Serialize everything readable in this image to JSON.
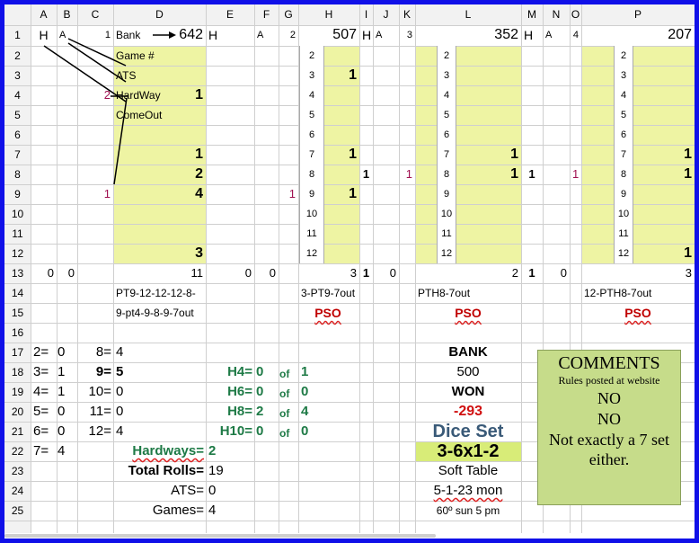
{
  "columns": [
    "A",
    "B",
    "C",
    "D",
    "E",
    "F",
    "G",
    "H",
    "I",
    "J",
    "K",
    "L",
    "M",
    "N",
    "O",
    "P"
  ],
  "rows": [
    "1",
    "2",
    "3",
    "4",
    "5",
    "6",
    "7",
    "8",
    "9",
    "10",
    "11",
    "12",
    "13",
    "14",
    "15",
    "16",
    "17",
    "18",
    "19",
    "20",
    "21",
    "22",
    "23",
    "24",
    "25"
  ],
  "labels": {
    "bank": "Bank",
    "game": "Game #",
    "ats": "ATS",
    "hardway": "HardWay",
    "comeout": "ComeOut"
  },
  "row1": {
    "a": "H",
    "b": "A",
    "c": "1",
    "d": "642",
    "e": "H",
    "f": "A",
    "g": "2",
    "h": "507",
    "i": "H",
    "j": "A",
    "k": "3",
    "l": "352",
    "m": "H",
    "n": "A",
    "o": "4",
    "p": "207"
  },
  "dice_numbers": [
    "2",
    "3",
    "4",
    "5",
    "6",
    "7",
    "8",
    "9",
    "10",
    "11",
    "12"
  ],
  "d_values": {
    "r4": "1",
    "r7": "1",
    "r8": "2",
    "r9": "4",
    "r12": "3"
  },
  "h_values": {
    "r3": "1",
    "r7": "1",
    "r9": "1"
  },
  "l_values": {
    "r7": "1",
    "r8": "1"
  },
  "p_values": {
    "r7": "1",
    "r8": "1",
    "r12": "1"
  },
  "row8": {
    "i": "1",
    "k": "1",
    "m": "1",
    "o": "1"
  },
  "row4c": "2",
  "row9": {
    "c": "1",
    "g": "1"
  },
  "row13": {
    "a": "0",
    "b": "0",
    "d": "11",
    "e": "0",
    "f": "0",
    "h": "3",
    "i": "1",
    "j": "0",
    "l": "2",
    "m": "1",
    "n": "0",
    "p": "3"
  },
  "row14": {
    "d": "PT9-12-12-12-8-",
    "h": "3-PT9-7out",
    "l": "PTH8-7out",
    "p": "12-PTH8-7out"
  },
  "row15": {
    "d": "9-pt4-9-8-9-7out",
    "h": "PSO",
    "l": "PSO",
    "p": "PSO"
  },
  "tally": [
    [
      "2=",
      "0",
      "8=",
      "4"
    ],
    [
      "3=",
      "1",
      "9=",
      "5"
    ],
    [
      "4=",
      "1",
      "10=",
      "0"
    ],
    [
      "5=",
      "0",
      "11=",
      "0"
    ],
    [
      "6=",
      "0",
      "12=",
      "4"
    ],
    [
      "7=",
      "4",
      "",
      ""
    ]
  ],
  "hard": [
    [
      "H4=",
      "0",
      "of",
      "1"
    ],
    [
      "H6=",
      "0",
      "of",
      "0"
    ],
    [
      "H8=",
      "2",
      "of",
      "4"
    ],
    [
      "H10=",
      "0",
      "of",
      "0"
    ]
  ],
  "hardways": {
    "label": "Hardways=",
    "value": "2"
  },
  "total_rolls": {
    "label": "Total Rolls=",
    "value": "19"
  },
  "ats": {
    "label": "ATS=",
    "value": "0"
  },
  "games": {
    "label": "Games=",
    "value": "4"
  },
  "bank": {
    "label": "BANK",
    "value": "500"
  },
  "won": {
    "label": "WON",
    "value": "-293"
  },
  "dice_set": {
    "label": "Dice Set",
    "value": "3-6x1-2"
  },
  "table": "Soft Table",
  "date": "5-1-23 mon",
  "weather": "60º sun 5 pm",
  "comments": {
    "title": "COMMENTS",
    "sub": "Rules posted at website",
    "l1": "NO",
    "l2": "NO",
    "l3": "Not exactly a 7 set either."
  }
}
